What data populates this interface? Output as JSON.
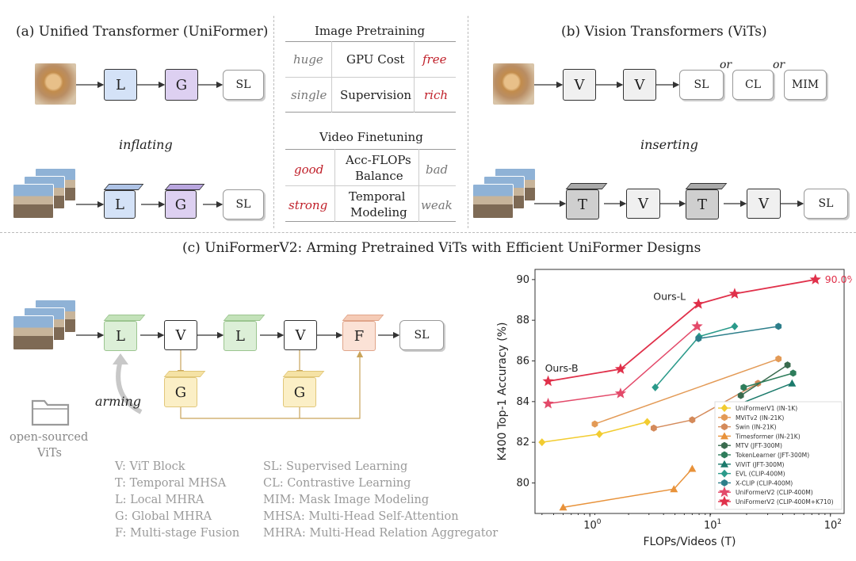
{
  "panel_a": {
    "title": "(a) Unified Transformer (UniFormer)",
    "inflating": "inflating",
    "L": "L",
    "G": "G",
    "SL": "SL"
  },
  "panel_b": {
    "title": "(b) Vision Transformers (ViTs)",
    "inserting": "inserting",
    "V": "V",
    "T": "T",
    "SL": "SL",
    "CL": "CL",
    "MIM": "MIM",
    "or": "or"
  },
  "middle": {
    "image_pretraining": "Image Pretraining",
    "video_finetuning": "Video Finetuning",
    "rows_top": [
      {
        "left": "huge",
        "mid": "GPU Cost",
        "right": "free"
      },
      {
        "left": "single",
        "mid": "Supervision",
        "right": "rich"
      }
    ],
    "rows_bottom": [
      {
        "left": "good",
        "mid1": "Acc-FLOPs",
        "mid2": "Balance",
        "right": "bad"
      },
      {
        "left": "strong",
        "mid1": "Temporal",
        "mid2": "Modeling",
        "right": "weak"
      }
    ]
  },
  "panel_c": {
    "title": "(c) UniFormerV2: Arming Pretrained ViTs with Efficient UniFormer Designs",
    "arming": "arming",
    "open_sourced_1": "open-sourced",
    "open_sourced_2": "ViTs",
    "L": "L",
    "V": "V",
    "F": "F",
    "G": "G",
    "SL": "SL",
    "legend_left": [
      "V: ViT Block",
      "T: Temporal MHSA",
      "L: Local MHRA",
      "G: Global MHRA",
      "F: Multi-stage Fusion"
    ],
    "legend_right": [
      "SL: Supervised Learning",
      "CL: Contrastive Learning",
      "MIM: Mask Image Modeling",
      "MHSA: Multi-Head Self-Attention",
      "MHRA: Multi-Head Relation Aggregator"
    ]
  },
  "chart_data": {
    "type": "line",
    "xlabel": "FLOPs/Videos (T)",
    "ylabel": "K400 Top-1 Accuracy (%)",
    "x_scale": "log",
    "xlim": [
      0.35,
      130
    ],
    "ylim": [
      78.5,
      90.5
    ],
    "xticks": [
      "10^0",
      "10^1",
      "10^2"
    ],
    "yticks": [
      80,
      82,
      84,
      86,
      88,
      90
    ],
    "grid": false,
    "legend_position": "bottom-right",
    "annotations": [
      {
        "text": "Ours-B",
        "x": 0.45,
        "y": 85.0
      },
      {
        "text": "Ours-L",
        "x": 8.0,
        "y": 88.8
      },
      {
        "text": "90.0%",
        "x": 75,
        "y": 90.0
      }
    ],
    "series": [
      {
        "name": "UniFormerV1 (IN-1K)",
        "color": "#f2cc30",
        "marker": "diamond",
        "points": [
          [
            0.4,
            82.0
          ],
          [
            1.2,
            82.4
          ],
          [
            3.0,
            83.0
          ]
        ]
      },
      {
        "name": "MViTv2 (IN-21K)",
        "color": "#e39a56",
        "marker": "hexagon",
        "points": [
          [
            1.1,
            82.9
          ],
          [
            37,
            86.1
          ]
        ]
      },
      {
        "name": "Swin (IN-21K)",
        "color": "#d48a5a",
        "marker": "hexagon",
        "points": [
          [
            3.4,
            82.7
          ],
          [
            7.1,
            83.1
          ],
          [
            25,
            84.9
          ]
        ]
      },
      {
        "name": "Timesformer (IN-21K)",
        "color": "#e8923a",
        "marker": "triangle",
        "points": [
          [
            0.6,
            78.8
          ],
          [
            5.0,
            79.7
          ],
          [
            7.1,
            80.7
          ]
        ]
      },
      {
        "name": "MTV (JFT-300M)",
        "color": "#3a6b4e",
        "marker": "hexagon",
        "points": [
          [
            18,
            84.3
          ],
          [
            44,
            85.8
          ]
        ]
      },
      {
        "name": "TokenLearner (JFT-300M)",
        "color": "#2e7d5b",
        "marker": "hexagon",
        "points": [
          [
            19,
            84.7
          ],
          [
            49,
            85.4
          ]
        ]
      },
      {
        "name": "ViViT (JFT-300M)",
        "color": "#1b7a6b",
        "marker": "triangle",
        "points": [
          [
            12,
            83.5
          ],
          [
            48,
            84.9
          ]
        ]
      },
      {
        "name": "EVL (CLIP-400M)",
        "color": "#2a9a8a",
        "marker": "diamond",
        "points": [
          [
            3.5,
            84.7
          ],
          [
            8.1,
            87.2
          ],
          [
            16,
            87.7
          ]
        ]
      },
      {
        "name": "X-CLIP (CLIP-400M)",
        "color": "#2d7e8a",
        "marker": "hexagon",
        "points": [
          [
            8.0,
            87.1
          ],
          [
            37,
            87.7
          ]
        ]
      },
      {
        "name": "UniFormerV2 (CLIP-400M)",
        "color": "#e34a6a",
        "marker": "star",
        "points": [
          [
            0.45,
            83.9
          ],
          [
            1.8,
            84.4
          ],
          [
            7.8,
            87.7
          ]
        ]
      },
      {
        "name": "UniFormerV2 (CLIP-400M+K710)",
        "color": "#e0304a",
        "marker": "star",
        "points": [
          [
            0.45,
            85.0
          ],
          [
            1.8,
            85.6
          ],
          [
            8.0,
            88.8
          ],
          [
            16,
            89.3
          ],
          [
            75,
            90.0
          ]
        ]
      }
    ]
  }
}
